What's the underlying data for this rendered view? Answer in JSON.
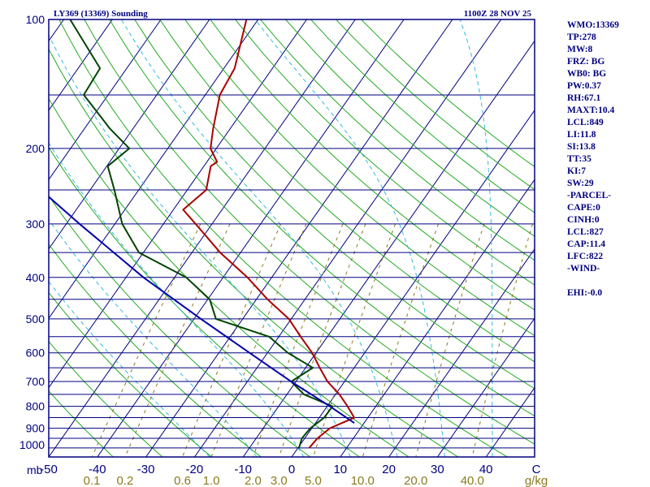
{
  "header": {
    "title": "LY369 (13369) Sounding",
    "datetime": "1100Z 28 NOV 25"
  },
  "colors": {
    "background": "#ffffff",
    "frame": "#000080",
    "isobar": "#000080",
    "isotherm": "#000080",
    "dry_adiabat": "#22aa22",
    "moist_adiabat": "#33bbdd",
    "mixing_ratio": "#8a7a1e",
    "temperature": "#aa0000",
    "dewpoint": "#004400",
    "parcel": "#0000aa"
  },
  "indices": [
    "WMO:13369",
    "TP:278",
    "MW:8",
    "FRZ: BG",
    "WB0: BG",
    "PW:0.37",
    "RH:67.1",
    "MAXT:10.4",
    "LCL:849",
    "LI:11.8",
    "SI:13.8",
    "TT:35",
    "KI:7",
    "SW:29",
    "-PARCEL-",
    "CAPE:0",
    "CINH:0",
    "LCL:827",
    "CAP:11.4",
    "LFC:822",
    "-WIND-",
    "",
    "EHI:-0.0"
  ],
  "chart_data": {
    "type": "line",
    "title": "LY369 (13369) Sounding",
    "subtitle": "1100Z 28 NOV 25",
    "xlabel": "°C",
    "ylabel": "mb",
    "y_scale": "log-pressure, skew-T",
    "ylim": [
      1050,
      100
    ],
    "xlim": [
      -50,
      50
    ],
    "pressure_labels": [
      {
        "p": 100,
        "text": "100"
      },
      {
        "p": 200,
        "text": "200"
      },
      {
        "p": 300,
        "text": "300"
      },
      {
        "p": 400,
        "text": "400"
      },
      {
        "p": 500,
        "text": "500"
      },
      {
        "p": 600,
        "text": "600"
      },
      {
        "p": 700,
        "text": "700"
      },
      {
        "p": 800,
        "text": "800"
      },
      {
        "p": 900,
        "text": "900"
      },
      {
        "p": 1000,
        "text": "1000"
      }
    ],
    "unit_label": "mb",
    "isobars": [
      100,
      150,
      200,
      250,
      300,
      350,
      400,
      450,
      500,
      550,
      600,
      650,
      700,
      750,
      800,
      850,
      900,
      950,
      1000,
      1050
    ],
    "temperature_ticks": [
      {
        "t": -50,
        "text": "-50"
      },
      {
        "t": -40,
        "text": "-40"
      },
      {
        "t": -30,
        "text": "-30"
      },
      {
        "t": -20,
        "text": "-20"
      },
      {
        "t": -10,
        "text": "-10"
      },
      {
        "t": 0,
        "text": "0"
      },
      {
        "t": 10,
        "text": "10"
      },
      {
        "t": 20,
        "text": "20"
      },
      {
        "t": 30,
        "text": "30"
      },
      {
        "t": 40,
        "text": "40"
      }
    ],
    "temperature_unit": "C",
    "mixing_ratio_labels": [
      {
        "w": 0.1,
        "text": "0.1"
      },
      {
        "w": 0.2,
        "text": "0.2"
      },
      {
        "w": 0.6,
        "text": "0.6"
      },
      {
        "w": 1.0,
        "text": "1.0"
      },
      {
        "w": 2.0,
        "text": "2.0"
      },
      {
        "w": 3.0,
        "text": "3.0"
      },
      {
        "w": 5.0,
        "text": "5.0"
      },
      {
        "w": 10.0,
        "text": "10.0"
      },
      {
        "w": 20.0,
        "text": "20.0"
      },
      {
        "w": 40.0,
        "text": "40.0"
      }
    ],
    "mixing_ratio_unit": "g/kg",
    "isotherm_range": [
      -130,
      50,
      10
    ],
    "dry_adiabats_theta_c": [
      -40,
      -30,
      -20,
      -10,
      0,
      10,
      20,
      30,
      40,
      50,
      60,
      70,
      80,
      90,
      100,
      110,
      120,
      130,
      140,
      150,
      160
    ],
    "moist_adiabats_thetaw_c": [
      -20,
      -10,
      0,
      10,
      20,
      30,
      40
    ],
    "mixing_ratio_lines": [
      0.1,
      0.2,
      0.6,
      1.0,
      2.0,
      3.0,
      5.0,
      10.0,
      20.0,
      40.0
    ],
    "series": [
      {
        "name": "Temperature",
        "points": [
          {
            "p": 1000,
            "t": 2.3
          },
          {
            "p": 950,
            "t": 2.6
          },
          {
            "p": 900,
            "t": 3.7
          },
          {
            "p": 850,
            "t": 7.2
          },
          {
            "p": 800,
            "t": 4.2
          },
          {
            "p": 750,
            "t": 0.8
          },
          {
            "p": 700,
            "t": -3.5
          },
          {
            "p": 650,
            "t": -7.1
          },
          {
            "p": 600,
            "t": -10.8
          },
          {
            "p": 550,
            "t": -15.5
          },
          {
            "p": 500,
            "t": -20.5
          },
          {
            "p": 450,
            "t": -27.7
          },
          {
            "p": 400,
            "t": -35.0
          },
          {
            "p": 350,
            "t": -44.2
          },
          {
            "p": 300,
            "t": -53.4
          },
          {
            "p": 278,
            "t": -58.0
          },
          {
            "p": 250,
            "t": -56.1
          },
          {
            "p": 220,
            "t": -58.6
          },
          {
            "p": 215,
            "t": -57.9
          },
          {
            "p": 200,
            "t": -61.2
          },
          {
            "p": 180,
            "t": -63.5
          },
          {
            "p": 150,
            "t": -67.0
          },
          {
            "p": 130,
            "t": -67.8
          },
          {
            "p": 100,
            "t": -72.4
          }
        ]
      },
      {
        "name": "Dewpoint",
        "points": [
          {
            "p": 1000,
            "t": 0.2
          },
          {
            "p": 950,
            "t": -0.6
          },
          {
            "p": 900,
            "t": -0.3
          },
          {
            "p": 850,
            "t": 1.0
          },
          {
            "p": 800,
            "t": 1.1
          },
          {
            "p": 750,
            "t": -6.5
          },
          {
            "p": 700,
            "t": -11.0
          },
          {
            "p": 650,
            "t": -8.5
          },
          {
            "p": 600,
            "t": -15.8
          },
          {
            "p": 550,
            "t": -22.0
          },
          {
            "p": 500,
            "t": -35.5
          },
          {
            "p": 450,
            "t": -39.6
          },
          {
            "p": 400,
            "t": -47.6
          },
          {
            "p": 350,
            "t": -60.9
          },
          {
            "p": 300,
            "t": -68.5
          },
          {
            "p": 250,
            "t": -75.0
          },
          {
            "p": 220,
            "t": -79.8
          },
          {
            "p": 200,
            "t": -77.9
          },
          {
            "p": 180,
            "t": -84.7
          },
          {
            "p": 150,
            "t": -95.0
          },
          {
            "p": 130,
            "t": -95.5
          },
          {
            "p": 100,
            "t": -108.7
          }
        ]
      },
      {
        "name": "Parcel",
        "points": [
          {
            "p": 875,
            "t": 8.0
          },
          {
            "p": 800,
            "t": 0.6
          },
          {
            "p": 700,
            "t": -11.0
          },
          {
            "p": 600,
            "t": -23.7
          },
          {
            "p": 500,
            "t": -38.6
          },
          {
            "p": 400,
            "t": -56.4
          },
          {
            "p": 300,
            "t": -77.3
          },
          {
            "p": 200,
            "t": -105.8
          },
          {
            "p": 150,
            "t": -119.7
          },
          {
            "p": 130,
            "t": -128.9
          }
        ]
      }
    ]
  }
}
